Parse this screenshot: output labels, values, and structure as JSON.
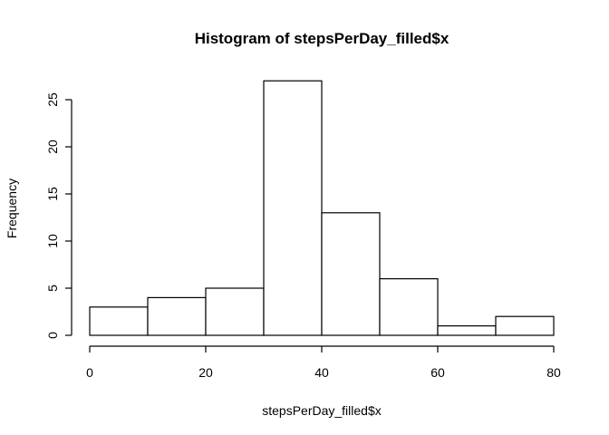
{
  "chart_data": {
    "type": "bar",
    "title": "Histogram of stepsPerDay_filled$x",
    "xlabel": "stepsPerDay_filled$x",
    "ylabel": "Frequency",
    "bins": [
      {
        "from": 0,
        "to": 10,
        "count": 3
      },
      {
        "from": 10,
        "to": 20,
        "count": 4
      },
      {
        "from": 20,
        "to": 30,
        "count": 5
      },
      {
        "from": 30,
        "to": 40,
        "count": 27
      },
      {
        "from": 40,
        "to": 50,
        "count": 13
      },
      {
        "from": 50,
        "to": 60,
        "count": 6
      },
      {
        "from": 60,
        "to": 70,
        "count": 1
      },
      {
        "from": 70,
        "to": 80,
        "count": 2
      }
    ],
    "xticks": [
      0,
      20,
      40,
      60,
      80
    ],
    "yticks": [
      0,
      5,
      10,
      15,
      20,
      25
    ],
    "xlim": [
      0,
      80
    ],
    "ylim": [
      0,
      27
    ],
    "grid": false
  }
}
